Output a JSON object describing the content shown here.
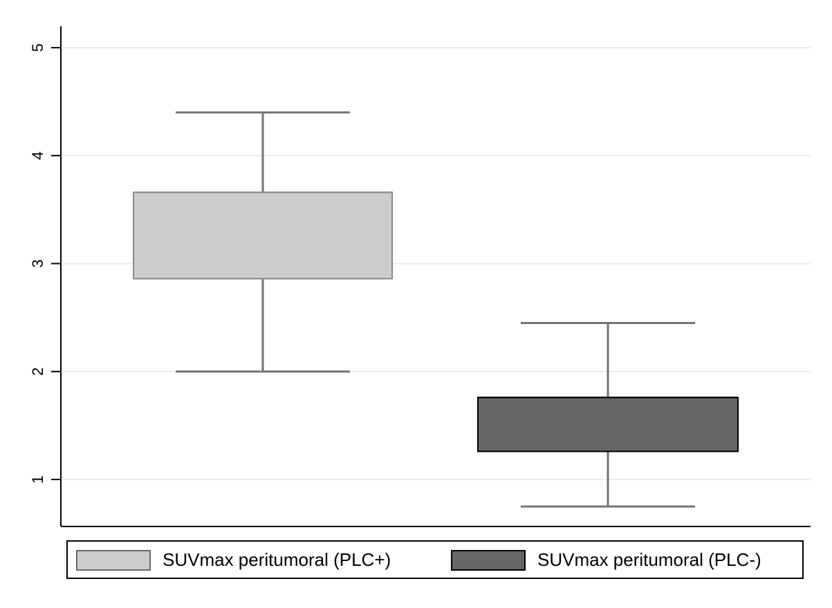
{
  "chart_data": {
    "type": "box",
    "ylim": [
      0.57,
      5.2
    ],
    "yticks": [
      1,
      2,
      3,
      4,
      5
    ],
    "ytick_labels": [
      "1",
      "2",
      "3",
      "4",
      "5"
    ],
    "grid": true,
    "legend_position": "bottom",
    "series": [
      {
        "name": "SUVmax peritumoral (PLC+)",
        "color": "#cccccc",
        "whisker_low": 2.0,
        "q1": 2.86,
        "median": 3.66,
        "q3": 3.66,
        "whisker_high": 4.4
      },
      {
        "name": "SUVmax peritumoral (PLC-)",
        "color": "#666666",
        "whisker_low": 0.75,
        "q1": 1.26,
        "median": 1.76,
        "q3": 1.76,
        "whisker_high": 2.45
      }
    ]
  },
  "colors": {
    "grid": "#e6eef0",
    "whisker": "#737373",
    "axis": "#000000"
  }
}
